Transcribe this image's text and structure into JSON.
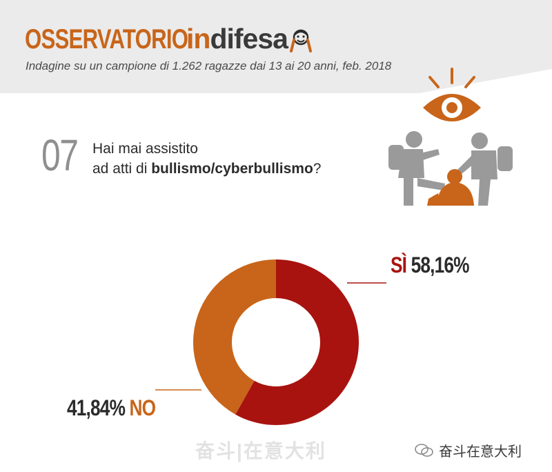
{
  "header": {
    "brand_part1": "OSSERVATORIO",
    "brand_part2_a": "in",
    "brand_part2_b": "difesa",
    "subtitle": "Indagine su un campione di 1.262 ragazze dai 13 ai 20 anni, feb. 2018"
  },
  "question": {
    "number": "07",
    "line1": "Hai mai assistito",
    "line2_prefix": "ad atti di ",
    "line2_bold": "bullismo/cyberbullismo",
    "line2_suffix": "?"
  },
  "colors": {
    "si": "#a8130f",
    "no": "#c8651a",
    "header_band": "#ebebeb"
  },
  "chart_data": {
    "type": "pie",
    "variant": "donut",
    "categories": [
      "SÌ",
      "NO"
    ],
    "values": [
      58.16,
      41.84
    ],
    "value_labels": [
      "58,16%",
      "41,84%"
    ]
  },
  "watermark": {
    "left_text": "奋斗|在意大利",
    "right_text": "奋斗在意大利"
  }
}
